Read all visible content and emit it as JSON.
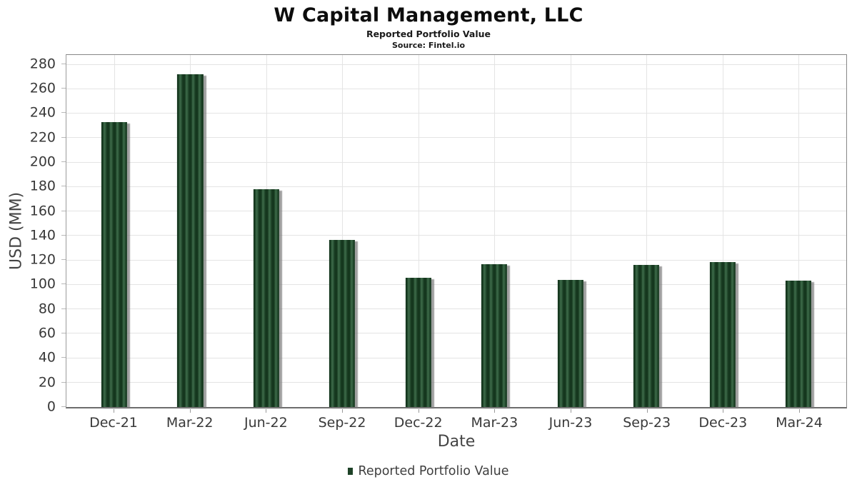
{
  "chart_data": {
    "type": "bar",
    "title": "W Capital Management, LLC",
    "subtitle": "Reported Portfolio Value",
    "source": "Source: Fintel.io",
    "xlabel": "Date",
    "ylabel": "USD (MM)",
    "categories": [
      "Dec-21",
      "Mar-22",
      "Jun-22",
      "Sep-22",
      "Dec-22",
      "Mar-23",
      "Jun-23",
      "Sep-23",
      "Dec-23",
      "Mar-24"
    ],
    "series": [
      {
        "name": "Reported Portfolio Value",
        "values": [
          233,
          272.5,
          178,
          136.5,
          105.5,
          117,
          104,
          116.5,
          118.5,
          103.5
        ]
      }
    ],
    "ylim": [
      0,
      288
    ],
    "yticks": {
      "step": 20,
      "max": 280
    },
    "grid": true,
    "legend_position": "bottom",
    "colors": {
      "bar_dark": "#15371e",
      "bar_mid": "#2c5637",
      "bar_light": "#3d6a49",
      "legend_marker": "#1e4227",
      "gridline": "#e4e4e4",
      "axis_text": "#383838",
      "axis_title": "#444444",
      "plot_border": "#878787"
    }
  }
}
